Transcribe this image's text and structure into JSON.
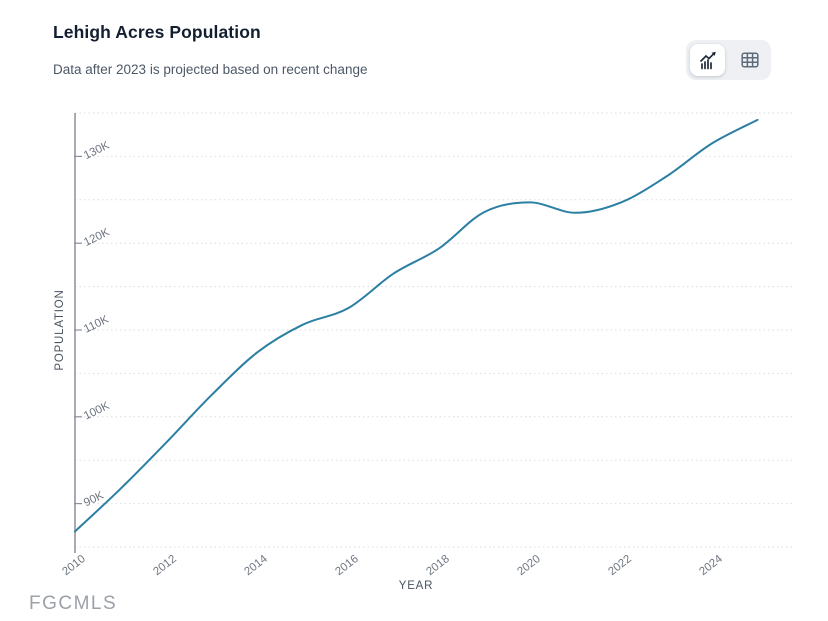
{
  "header": {
    "title": "Lehigh Acres Population",
    "subtitle": "Data after 2023 is projected based on recent change"
  },
  "toolbar": {
    "chart_view": "line-chart view (selected)",
    "table_view": "table view"
  },
  "watermark": "FGCMLS",
  "colors": {
    "line": "#2b7fa3",
    "title": "#131f30",
    "subtitle": "#4d5866",
    "axis_line": "#8b9199",
    "tick_label": "#6e7681",
    "axis_title": "#4a5260",
    "gridline": "#d9dde3",
    "toggle_bg": "#eef0f4",
    "toggle_active_bg": "#ffffff",
    "icon_active": "#1f2937",
    "icon_inactive": "#5d6a7a",
    "watermark": "#9aa1a8"
  },
  "chart_data": {
    "type": "line",
    "title": "Lehigh Acres Population",
    "xlabel": "YEAR",
    "ylabel": "POPULATION",
    "x": [
      2010,
      2011,
      2012,
      2013,
      2014,
      2015,
      2016,
      2017,
      2018,
      2019,
      2020,
      2021,
      2022,
      2023,
      2024,
      2025
    ],
    "series": [
      {
        "name": "Lehigh Acres Population",
        "values": [
          86800,
          91700,
          97000,
          102500,
          107400,
          110600,
          112500,
          116500,
          119400,
          123600,
          124700,
          123500,
          124700,
          127700,
          131500,
          134200
        ]
      }
    ],
    "x_tick_years": [
      2010,
      2012,
      2014,
      2016,
      2018,
      2020,
      2022,
      2024
    ],
    "x_tick_labels": [
      "2010",
      "2012",
      "2014",
      "2016",
      "2018",
      "2020",
      "2022",
      "2024"
    ],
    "y_tick_values": [
      90000,
      100000,
      110000,
      120000,
      130000
    ],
    "y_tick_labels": [
      "90K",
      "100K",
      "110K",
      "120K",
      "130K"
    ],
    "ylim": [
      85000,
      135000
    ],
    "xlim": [
      2010,
      2025
    ],
    "grid_step": 5000,
    "grid_style": "dotted horizontal",
    "legend": "none",
    "annotation": "data after 2023 projected"
  }
}
